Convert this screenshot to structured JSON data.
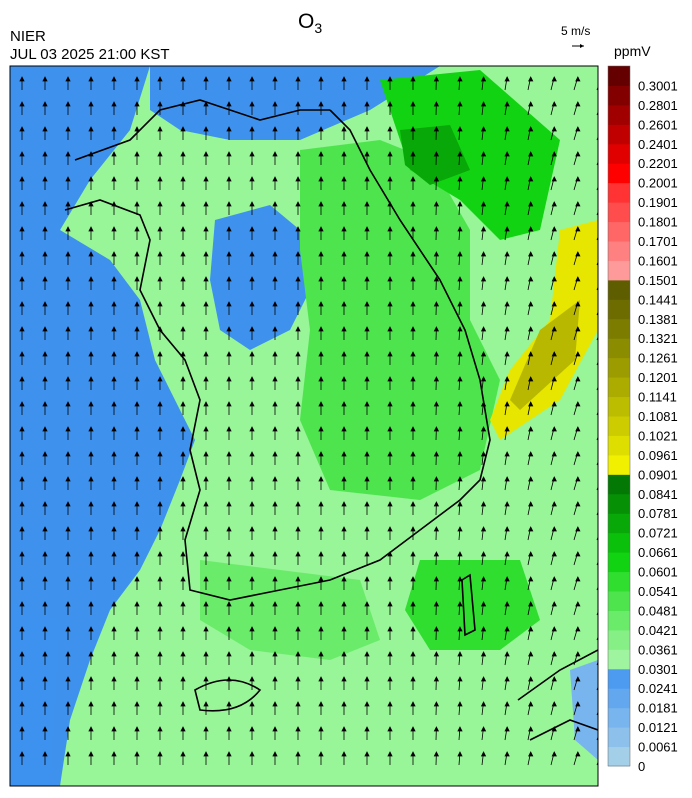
{
  "header": {
    "title": "O",
    "title_sub": "3",
    "agency": "NIER",
    "datetime": "JUL 03 2025 21:00 KST",
    "wind_ref": "5 m/s"
  },
  "colorbar": {
    "unit": "ppmV",
    "levels": [
      0,
      0.0061,
      0.0121,
      0.0181,
      0.0241,
      0.0301,
      0.0361,
      0.0421,
      0.0481,
      0.0541,
      0.0601,
      0.0661,
      0.0721,
      0.0781,
      0.0841,
      0.0901,
      0.0961,
      0.1021,
      0.1081,
      0.1141,
      0.1201,
      0.1261,
      0.1321,
      0.1381,
      0.1441,
      0.1501,
      0.1601,
      0.1701,
      0.1801,
      0.1901,
      0.2001,
      0.2201,
      0.2401,
      0.2601,
      0.2801,
      0.3001
    ],
    "colors": [
      "#a3cfe9",
      "#8dc1ec",
      "#78b4ee",
      "#63a7ef",
      "#4c9bf0",
      "#9ff59f",
      "#86f086",
      "#6aeb6a",
      "#4ee44e",
      "#2fde2f",
      "#12d312",
      "#0ac00a",
      "#07a807",
      "#059005",
      "#047804",
      "#f0f000",
      "#dede00",
      "#cccc00",
      "#bcbc00",
      "#acac00",
      "#9c9c00",
      "#8c8c00",
      "#7c7c00",
      "#6c6c00",
      "#5e5e00",
      "#ff9a9a",
      "#ff8080",
      "#ff6666",
      "#ff4c4c",
      "#ff3333",
      "#ff0000",
      "#e00000",
      "#c00000",
      "#a00000",
      "#820000",
      "#640000"
    ]
  }
}
